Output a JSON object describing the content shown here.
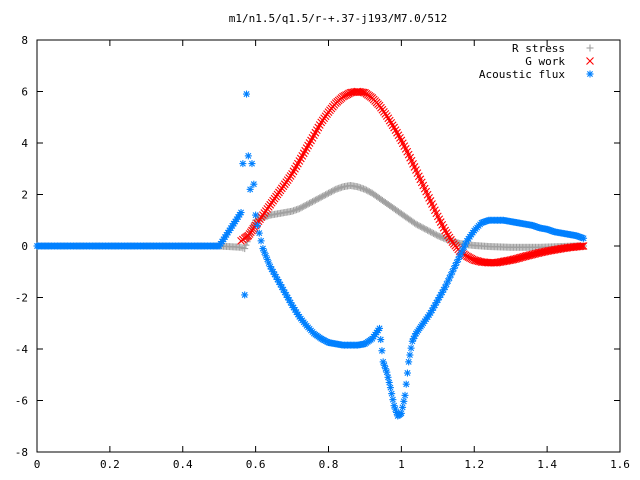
{
  "chart_data": {
    "type": "scatter",
    "title": "m1/n1.5/q1.5/r-+.37-j193/M7.0/512",
    "xlabel": "",
    "ylabel": "",
    "xlim": [
      0,
      1.6
    ],
    "ylim": [
      -8,
      8
    ],
    "x_ticks": [
      "0",
      "0.2",
      "0.4",
      "0.6",
      "0.8",
      "1",
      "1.2",
      "1.4",
      "1.6"
    ],
    "y_ticks": [
      "8",
      "6",
      "4",
      "2",
      "0",
      "-2",
      "-4",
      "-6",
      "-8"
    ],
    "grid": false,
    "legend_position": "top-right",
    "series": [
      {
        "name": "R stress",
        "marker": "plus",
        "color": "#a0a0a0",
        "x": [
          0.0,
          0.1,
          0.2,
          0.3,
          0.4,
          0.5,
          0.56,
          0.57,
          0.58,
          0.59,
          0.6,
          0.62,
          0.64,
          0.66,
          0.68,
          0.7,
          0.72,
          0.74,
          0.76,
          0.78,
          0.8,
          0.82,
          0.84,
          0.86,
          0.88,
          0.9,
          0.92,
          0.94,
          0.96,
          0.98,
          1.0,
          1.02,
          1.04,
          1.06,
          1.08,
          1.1,
          1.12,
          1.14,
          1.16,
          1.18,
          1.2,
          1.22,
          1.24,
          1.26,
          1.28,
          1.3,
          1.32,
          1.34,
          1.36,
          1.38,
          1.4,
          1.42,
          1.44,
          1.46,
          1.48,
          1.5
        ],
        "y": [
          0,
          0,
          0,
          0,
          0,
          0,
          -0.05,
          -0.1,
          0.3,
          0.7,
          1.0,
          1.1,
          1.2,
          1.25,
          1.3,
          1.35,
          1.45,
          1.6,
          1.75,
          1.9,
          2.05,
          2.2,
          2.3,
          2.35,
          2.3,
          2.2,
          2.05,
          1.85,
          1.65,
          1.45,
          1.25,
          1.05,
          0.85,
          0.7,
          0.55,
          0.4,
          0.28,
          0.18,
          0.1,
          0.05,
          0.02,
          0.0,
          -0.02,
          -0.03,
          -0.04,
          -0.05,
          -0.05,
          -0.05,
          -0.05,
          -0.05,
          -0.04,
          -0.03,
          -0.02,
          -0.01,
          0.0,
          0.0
        ]
      },
      {
        "name": "G work",
        "marker": "cross",
        "color": "#ff0000",
        "x": [
          0.56,
          0.57,
          0.58,
          0.59,
          0.6,
          0.62,
          0.64,
          0.66,
          0.68,
          0.7,
          0.72,
          0.74,
          0.76,
          0.78,
          0.8,
          0.82,
          0.84,
          0.86,
          0.88,
          0.9,
          0.92,
          0.94,
          0.96,
          0.98,
          1.0,
          1.02,
          1.04,
          1.06,
          1.08,
          1.1,
          1.12,
          1.14,
          1.16,
          1.18,
          1.2,
          1.22,
          1.24,
          1.26,
          1.28,
          1.3,
          1.32,
          1.34,
          1.36,
          1.38,
          1.4,
          1.42,
          1.44,
          1.46,
          1.48,
          1.5
        ],
        "y": [
          0.2,
          0.3,
          0.4,
          0.6,
          0.8,
          1.2,
          1.6,
          2.0,
          2.4,
          2.8,
          3.3,
          3.8,
          4.3,
          4.8,
          5.2,
          5.55,
          5.8,
          5.95,
          6.0,
          5.95,
          5.75,
          5.45,
          5.05,
          4.6,
          4.1,
          3.55,
          2.95,
          2.35,
          1.75,
          1.15,
          0.6,
          0.15,
          -0.2,
          -0.4,
          -0.55,
          -0.62,
          -0.65,
          -0.65,
          -0.6,
          -0.55,
          -0.48,
          -0.4,
          -0.33,
          -0.26,
          -0.2,
          -0.15,
          -0.1,
          -0.06,
          -0.03,
          0.0
        ]
      },
      {
        "name": "Acoustic flux",
        "marker": "star",
        "color": "#0080ff",
        "x": [
          0.0,
          0.1,
          0.2,
          0.3,
          0.4,
          0.5,
          0.56,
          0.565,
          0.57,
          0.575,
          0.58,
          0.585,
          0.59,
          0.595,
          0.6,
          0.605,
          0.61,
          0.615,
          0.62,
          0.64,
          0.66,
          0.68,
          0.7,
          0.72,
          0.74,
          0.76,
          0.78,
          0.8,
          0.82,
          0.84,
          0.86,
          0.88,
          0.9,
          0.92,
          0.94,
          0.95,
          0.96,
          0.97,
          0.98,
          0.99,
          1.0,
          1.01,
          1.02,
          1.03,
          1.04,
          1.05,
          1.06,
          1.08,
          1.1,
          1.12,
          1.14,
          1.16,
          1.18,
          1.2,
          1.22,
          1.24,
          1.26,
          1.28,
          1.3,
          1.32,
          1.34,
          1.36,
          1.38,
          1.4,
          1.42,
          1.44,
          1.46,
          1.48,
          1.5
        ],
        "y": [
          0,
          0,
          0,
          0,
          0,
          0,
          1.3,
          3.2,
          -1.9,
          5.9,
          3.5,
          2.2,
          3.2,
          2.4,
          1.2,
          0.8,
          0.5,
          0.2,
          -0.1,
          -0.8,
          -1.3,
          -1.8,
          -2.3,
          -2.75,
          -3.1,
          -3.4,
          -3.6,
          -3.75,
          -3.8,
          -3.85,
          -3.85,
          -3.85,
          -3.8,
          -3.6,
          -3.2,
          -4.5,
          -4.9,
          -5.5,
          -6.2,
          -6.6,
          -6.5,
          -5.8,
          -4.5,
          -3.7,
          -3.4,
          -3.2,
          -3.0,
          -2.6,
          -2.1,
          -1.6,
          -1.0,
          -0.4,
          0.2,
          0.6,
          0.9,
          1.0,
          1.0,
          1.0,
          0.95,
          0.9,
          0.85,
          0.8,
          0.7,
          0.65,
          0.55,
          0.5,
          0.45,
          0.4,
          0.3
        ]
      }
    ]
  }
}
